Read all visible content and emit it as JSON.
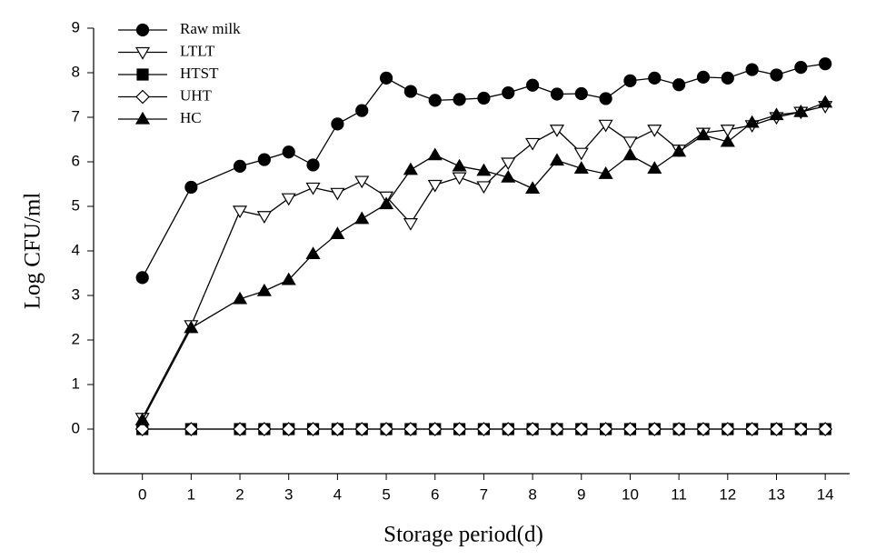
{
  "chart_data": {
    "type": "line",
    "xlabel": "Storage period(d)",
    "ylabel": "Log CFU/ml",
    "x": [
      0,
      1,
      2,
      2.5,
      3,
      3.5,
      4,
      4.5,
      5,
      5.5,
      6,
      6.5,
      7,
      7.5,
      8,
      8.5,
      9,
      9.5,
      10,
      10.5,
      11,
      11.5,
      12,
      12.5,
      13,
      13.5,
      14
    ],
    "xlim": [
      -1,
      14.5
    ],
    "xticks": [
      0,
      1,
      2,
      3,
      4,
      5,
      6,
      7,
      8,
      9,
      10,
      11,
      12,
      13,
      14
    ],
    "ylim": [
      -1,
      9
    ],
    "yticks": [
      0,
      1,
      2,
      3,
      4,
      5,
      6,
      7,
      8,
      9
    ],
    "legend": "upper-left",
    "grid": false,
    "series": [
      {
        "name": "Raw milk",
        "color": "#000000",
        "marker": "circle",
        "filled": true,
        "values": [
          3.4,
          5.43,
          5.9,
          6.05,
          6.22,
          5.93,
          6.85,
          7.15,
          7.88,
          7.58,
          7.38,
          7.4,
          7.43,
          7.55,
          7.72,
          7.52,
          7.53,
          7.42,
          7.82,
          7.88,
          7.73,
          7.9,
          7.88,
          8.07,
          7.95,
          8.12,
          8.2
        ]
      },
      {
        "name": "LTLT",
        "color": "#000000",
        "marker": "triangle-down",
        "filled": false,
        "values": [
          0.25,
          2.33,
          4.9,
          4.78,
          5.18,
          5.42,
          5.3,
          5.57,
          5.22,
          4.62,
          5.48,
          5.65,
          5.45,
          5.98,
          6.42,
          6.72,
          6.2,
          6.83,
          6.45,
          6.72,
          6.27,
          6.65,
          6.72,
          6.82,
          7.0,
          7.12,
          7.25
        ]
      },
      {
        "name": "HTST",
        "color": "#000000",
        "marker": "square",
        "filled": true,
        "values": [
          0,
          0,
          0,
          0,
          0,
          0,
          0,
          0,
          0,
          0,
          0,
          0,
          0,
          0,
          0,
          0,
          0,
          0,
          0,
          0,
          0,
          0,
          0,
          0,
          0,
          0,
          0
        ]
      },
      {
        "name": "UHT",
        "color": "#000000",
        "marker": "diamond",
        "filled": false,
        "values": [
          0,
          0,
          0,
          0,
          0,
          0,
          0,
          0,
          0,
          0,
          0,
          0,
          0,
          0,
          0,
          0,
          0,
          0,
          0,
          0,
          0,
          0,
          0,
          0,
          0,
          0,
          0
        ]
      },
      {
        "name": "HC",
        "color": "#000000",
        "marker": "triangle-up",
        "filled": true,
        "values": [
          0.2,
          2.27,
          2.92,
          3.1,
          3.35,
          3.93,
          4.38,
          4.72,
          5.05,
          5.82,
          6.15,
          5.9,
          5.8,
          5.65,
          5.4,
          6.03,
          5.85,
          5.73,
          6.15,
          5.85,
          6.23,
          6.6,
          6.45,
          6.88,
          7.05,
          7.12,
          7.33
        ]
      }
    ]
  }
}
